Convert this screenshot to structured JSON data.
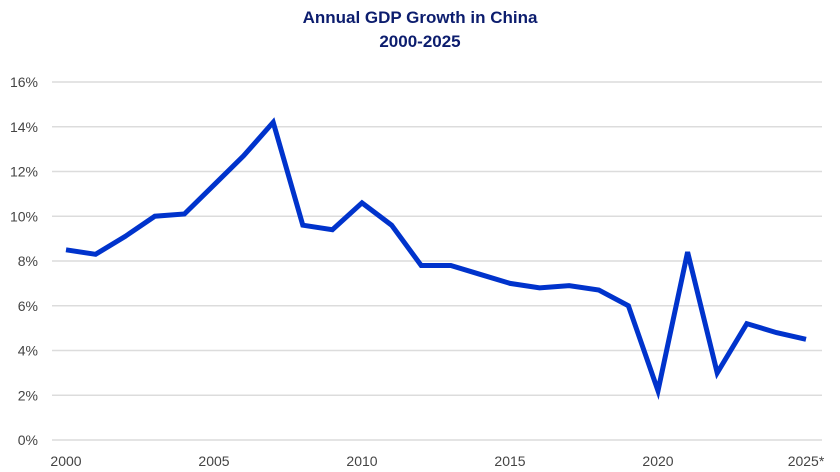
{
  "chart_data": {
    "type": "line",
    "title": "Annual GDP Growth in China",
    "subtitle": "2000-2025",
    "xlabel": "",
    "ylabel": "",
    "x": [
      2000,
      2001,
      2002,
      2003,
      2004,
      2005,
      2006,
      2007,
      2008,
      2009,
      2010,
      2011,
      2012,
      2013,
      2014,
      2015,
      2016,
      2017,
      2018,
      2019,
      2020,
      2021,
      2022,
      2023,
      2024,
      2025
    ],
    "series": [
      {
        "name": "GDP Growth",
        "color": "#0033cc",
        "values": [
          8.5,
          8.3,
          9.1,
          10.0,
          10.1,
          11.4,
          12.7,
          14.2,
          9.6,
          9.4,
          10.6,
          9.6,
          7.8,
          7.8,
          7.4,
          7.0,
          6.8,
          6.9,
          6.7,
          6.0,
          2.2,
          8.4,
          3.0,
          5.2,
          4.8,
          4.5
        ]
      }
    ],
    "xlim": [
      2000,
      2025
    ],
    "ylim": [
      0,
      16
    ],
    "yticks": [
      0,
      2,
      4,
      6,
      8,
      10,
      12,
      14,
      16
    ],
    "ytick_labels": [
      "0%",
      "2%",
      "4%",
      "6%",
      "8%",
      "10%",
      "12%",
      "14%",
      "16%"
    ],
    "xticks": [
      2000,
      2005,
      2010,
      2015,
      2020,
      2025
    ],
    "xtick_labels": [
      "2000",
      "2005",
      "2010",
      "2015",
      "2020",
      "2025*"
    ],
    "grid": true,
    "legend": "none"
  }
}
